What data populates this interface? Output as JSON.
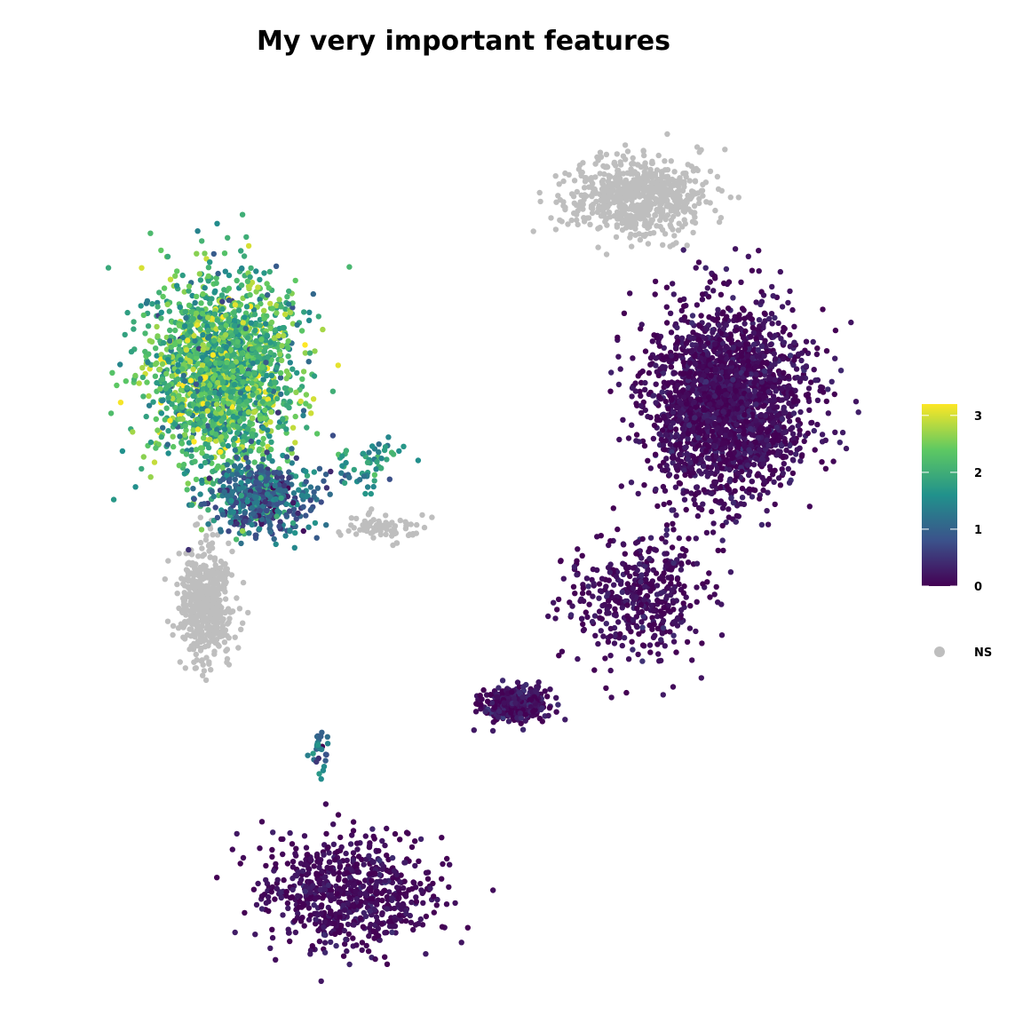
{
  "chart_data": {
    "type": "scatter",
    "title": "My very important features",
    "xlabel": "",
    "ylabel": "",
    "grid": false,
    "color_scale": {
      "name": "viridis",
      "stops": [
        "#440154",
        "#3b528b",
        "#21918c",
        "#5ec962",
        "#fde725"
      ],
      "domain": [
        0,
        3.2
      ],
      "ticks": [
        0,
        1,
        2,
        3
      ]
    },
    "ns_color": "#bebebe",
    "ns_label": "NS",
    "legend_position": "right",
    "clusters": [
      {
        "id": "A-upper",
        "center": [
          -4.0,
          3.6
        ],
        "spread": [
          1.2,
          1.9
        ],
        "count": 1900,
        "value_mean": 2.15,
        "value_sd": 0.5,
        "ns_fraction": 0.0
      },
      {
        "id": "A-lower",
        "center": [
          -3.2,
          0.9
        ],
        "spread": [
          0.9,
          0.7
        ],
        "count": 480,
        "value_mean": 1.1,
        "value_sd": 0.45,
        "ns_fraction": 0.0
      },
      {
        "id": "A-arm",
        "center": [
          -1.2,
          1.6
        ],
        "spread": [
          0.6,
          0.6
        ],
        "count": 60,
        "value_mean": 1.6,
        "value_sd": 0.4,
        "ns_fraction": 0.0
      },
      {
        "id": "NS-column",
        "center": [
          -4.3,
          -1.3
        ],
        "spread": [
          0.45,
          1.1
        ],
        "count": 500,
        "value_mean": 0,
        "value_sd": 0,
        "ns_fraction": 1.0
      },
      {
        "id": "NS-bridge",
        "center": [
          -1.0,
          0.3
        ],
        "spread": [
          0.55,
          0.25
        ],
        "count": 80,
        "value_mean": 0,
        "value_sd": 0,
        "ns_fraction": 1.0
      },
      {
        "id": "NS-top-right",
        "center": [
          3.8,
          7.4
        ],
        "spread": [
          1.2,
          0.75
        ],
        "count": 700,
        "value_mean": 0,
        "value_sd": 0,
        "ns_fraction": 1.0
      },
      {
        "id": "B-main",
        "center": [
          5.5,
          3.0
        ],
        "spread": [
          1.3,
          1.8
        ],
        "count": 2300,
        "value_mean": 0.1,
        "value_sd": 0.15,
        "ns_fraction": 0.0
      },
      {
        "id": "B-stream",
        "center": [
          3.8,
          -1.2
        ],
        "spread": [
          1.2,
          1.3
        ],
        "count": 450,
        "value_mean": 0.1,
        "value_sd": 0.15,
        "ns_fraction": 0.0
      },
      {
        "id": "B-lower-left",
        "center": [
          1.5,
          -3.5
        ],
        "spread": [
          0.55,
          0.35
        ],
        "count": 350,
        "value_mean": 0.15,
        "value_sd": 0.2,
        "ns_fraction": 0.0
      },
      {
        "id": "C-ring",
        "center": [
          -1.6,
          -7.5
        ],
        "spread": [
          1.5,
          1.1
        ],
        "count": 700,
        "value_mean": 0.1,
        "value_sd": 0.15,
        "ns_fraction": 0.0
      },
      {
        "id": "D-small",
        "center": [
          -2.2,
          -4.5
        ],
        "spread": [
          0.15,
          0.45
        ],
        "count": 30,
        "value_mean": 1.3,
        "value_sd": 0.5,
        "ns_fraction": 0.0
      }
    ],
    "xlim": [
      -7.0,
      8.5
    ],
    "ylim": [
      -9.5,
      9.5
    ]
  }
}
